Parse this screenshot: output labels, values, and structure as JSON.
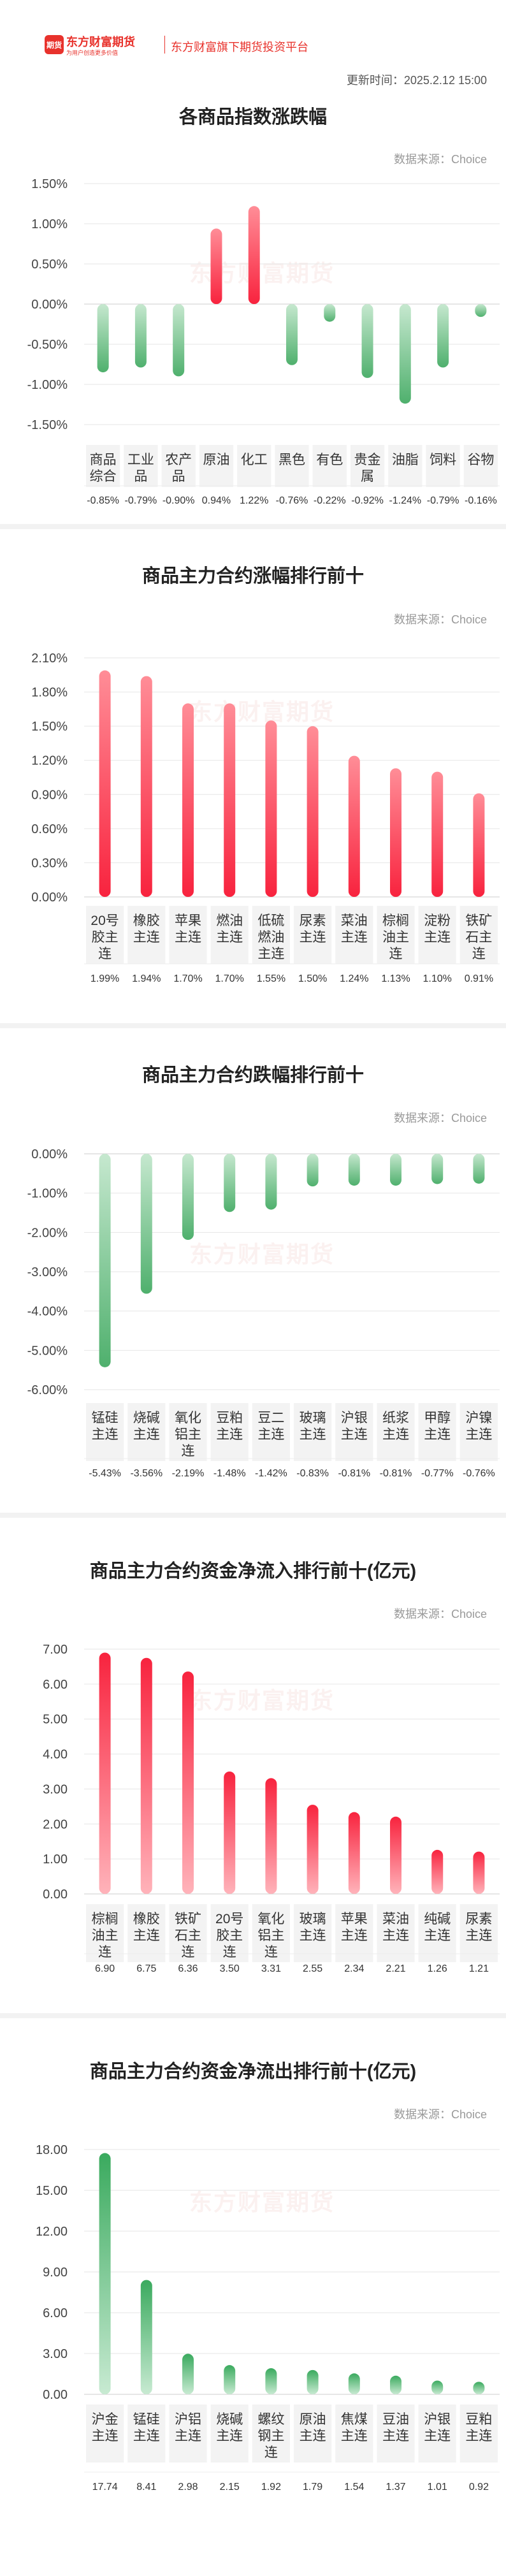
{
  "header": {
    "logo_badge": "期货",
    "logo_name": "东方财富期货",
    "logo_slogan": "为用户创造更多价值",
    "platform": "东方财富旗下期货投资平台",
    "update_time": "更新时间：2025.2.12 15:00"
  },
  "source_label": "数据来源：Choice",
  "watermark": "东方财富期货",
  "chart_data": [
    {
      "type": "bar",
      "title": "各商品指数涨跌幅",
      "categories": [
        "商品综合",
        "工业品",
        "农产品",
        "原油",
        "化工",
        "黑色",
        "有色",
        "贵金属",
        "油脂",
        "饲料",
        "谷物"
      ],
      "category_lines": [
        [
          "商品",
          "综合"
        ],
        [
          "工业",
          "品"
        ],
        [
          "农产",
          "品"
        ],
        [
          "原油"
        ],
        [
          "化工"
        ],
        [
          "黑色"
        ],
        [
          "有色"
        ],
        [
          "贵金",
          "属"
        ],
        [
          "油脂"
        ],
        [
          "饲料"
        ],
        [
          "谷物"
        ]
      ],
      "values": [
        -0.85,
        -0.79,
        -0.9,
        0.94,
        1.22,
        -0.76,
        -0.22,
        -0.92,
        -1.24,
        -0.79,
        -0.16
      ],
      "value_labels": [
        "-0.85%",
        "-0.79%",
        "-0.90%",
        "0.94%",
        "1.22%",
        "-0.76%",
        "-0.22%",
        "-0.92%",
        "-1.24%",
        "-0.79%",
        "-0.16%"
      ],
      "ylim": [
        -1.5,
        1.5
      ],
      "yticks": [
        1.5,
        1.0,
        0.5,
        0.0,
        -0.5,
        -1.0,
        -1.5
      ],
      "ytick_labels": [
        "1.50%",
        "1.00%",
        "0.50%",
        "0.00%",
        "-0.50%",
        "-1.00%",
        "-1.50%"
      ]
    },
    {
      "type": "bar",
      "title": "商品主力合约涨幅排行前十",
      "categories": [
        "20号胶主连",
        "橡胶主连",
        "苹果主连",
        "燃油主连",
        "低硫燃油主连",
        "尿素主连",
        "菜油主连",
        "棕榈油主连",
        "淀粉主连",
        "铁矿石主连"
      ],
      "category_lines": [
        [
          "20号",
          "胶主",
          "连"
        ],
        [
          "橡胶",
          "主连"
        ],
        [
          "苹果",
          "主连"
        ],
        [
          "燃油",
          "主连"
        ],
        [
          "低硫",
          "燃油",
          "主连"
        ],
        [
          "尿素",
          "主连"
        ],
        [
          "菜油",
          "主连"
        ],
        [
          "棕榈",
          "油主",
          "连"
        ],
        [
          "淀粉",
          "主连"
        ],
        [
          "铁矿",
          "石主",
          "连"
        ]
      ],
      "values": [
        1.99,
        1.94,
        1.7,
        1.7,
        1.55,
        1.5,
        1.24,
        1.13,
        1.1,
        0.91
      ],
      "value_labels": [
        "1.99%",
        "1.94%",
        "1.70%",
        "1.70%",
        "1.55%",
        "1.50%",
        "1.24%",
        "1.13%",
        "1.10%",
        "0.91%"
      ],
      "ylim": [
        0,
        2.1
      ],
      "yticks": [
        2.1,
        1.8,
        1.5,
        1.2,
        0.9,
        0.6,
        0.3,
        0.0
      ],
      "ytick_labels": [
        "2.10%",
        "1.80%",
        "1.50%",
        "1.20%",
        "0.90%",
        "0.60%",
        "0.30%",
        "0.00%"
      ]
    },
    {
      "type": "bar",
      "title": "商品主力合约跌幅排行前十",
      "categories": [
        "锰硅主连",
        "烧碱主连",
        "氧化铝主连",
        "豆粕主连",
        "豆二主连",
        "玻璃主连",
        "沪银主连",
        "纸浆主连",
        "甲醇主连",
        "沪镍主连"
      ],
      "category_lines": [
        [
          "锰硅",
          "主连"
        ],
        [
          "烧碱",
          "主连"
        ],
        [
          "氧化",
          "铝主",
          "连"
        ],
        [
          "豆粕",
          "主连"
        ],
        [
          "豆二",
          "主连"
        ],
        [
          "玻璃",
          "主连"
        ],
        [
          "沪银",
          "主连"
        ],
        [
          "纸浆",
          "主连"
        ],
        [
          "甲醇",
          "主连"
        ],
        [
          "沪镍",
          "主连"
        ]
      ],
      "values": [
        -5.43,
        -3.56,
        -2.19,
        -1.48,
        -1.42,
        -0.83,
        -0.81,
        -0.81,
        -0.77,
        -0.76
      ],
      "value_labels": [
        "-5.43%",
        "-3.56%",
        "-2.19%",
        "-1.48%",
        "-1.42%",
        "-0.83%",
        "-0.81%",
        "-0.81%",
        "-0.77%",
        "-0.76%"
      ],
      "ylim": [
        -6.0,
        0.0
      ],
      "yticks": [
        0.0,
        -1.0,
        -2.0,
        -3.0,
        -4.0,
        -5.0,
        -6.0
      ],
      "ytick_labels": [
        "0.00%",
        "-1.00%",
        "-2.00%",
        "-3.00%",
        "-4.00%",
        "-5.00%",
        "-6.00%"
      ]
    },
    {
      "type": "bar",
      "title": "商品主力合约资金净流入排行前十(亿元)",
      "categories": [
        "棕榈油主连",
        "橡胶主连",
        "铁矿石主连",
        "20号胶主连",
        "氧化铝主连",
        "玻璃主连",
        "苹果主连",
        "菜油主连",
        "纯碱主连",
        "尿素主连"
      ],
      "category_lines": [
        [
          "棕榈",
          "油主",
          "连"
        ],
        [
          "橡胶",
          "主连"
        ],
        [
          "铁矿",
          "石主",
          "连"
        ],
        [
          "20号",
          "胶主",
          "连"
        ],
        [
          "氧化",
          "铝主",
          "连"
        ],
        [
          "玻璃",
          "主连"
        ],
        [
          "苹果",
          "主连"
        ],
        [
          "菜油",
          "主连"
        ],
        [
          "纯碱",
          "主连"
        ],
        [
          "尿素",
          "主连"
        ]
      ],
      "values": [
        6.9,
        6.75,
        6.36,
        3.5,
        3.31,
        2.55,
        2.34,
        2.21,
        1.26,
        1.21
      ],
      "value_labels": [
        "6.90",
        "6.75",
        "6.36",
        "3.50",
        "3.31",
        "2.55",
        "2.34",
        "2.21",
        "1.26",
        "1.21"
      ],
      "ylim": [
        0,
        7.0
      ],
      "yticks": [
        7.0,
        6.0,
        5.0,
        4.0,
        3.0,
        2.0,
        1.0,
        0.0
      ],
      "ytick_labels": [
        "7.00",
        "6.00",
        "5.00",
        "4.00",
        "3.00",
        "2.00",
        "1.00",
        "0.00"
      ]
    },
    {
      "type": "bar",
      "title": "商品主力合约资金净流出排行前十(亿元)",
      "categories": [
        "沪金主连",
        "锰硅主连",
        "沪铝主连",
        "烧碱主连",
        "螺纹钢主连",
        "原油主连",
        "焦煤主连",
        "豆油主连",
        "沪银主连",
        "豆粕主连"
      ],
      "category_lines": [
        [
          "沪金",
          "主连"
        ],
        [
          "锰硅",
          "主连"
        ],
        [
          "沪铝",
          "主连"
        ],
        [
          "烧碱",
          "主连"
        ],
        [
          "螺纹",
          "钢主",
          "连"
        ],
        [
          "原油",
          "主连"
        ],
        [
          "焦煤",
          "主连"
        ],
        [
          "豆油",
          "主连"
        ],
        [
          "沪银",
          "主连"
        ],
        [
          "豆粕",
          "主连"
        ]
      ],
      "values": [
        17.74,
        8.41,
        2.98,
        2.15,
        1.92,
        1.79,
        1.54,
        1.37,
        1.01,
        0.92
      ],
      "value_labels": [
        "17.74",
        "8.41",
        "2.98",
        "2.15",
        "1.92",
        "1.79",
        "1.54",
        "1.37",
        "1.01",
        "0.92"
      ],
      "ylim": [
        0,
        18.0
      ],
      "yticks": [
        18.0,
        15.0,
        12.0,
        9.0,
        6.0,
        3.0,
        0.0
      ],
      "ytick_labels": [
        "18.00",
        "15.00",
        "12.00",
        "9.00",
        "6.00",
        "3.00",
        "0.00"
      ]
    }
  ],
  "colors": {
    "up_top": "#ff8d97",
    "up_bottom": "#f8233e",
    "down_top": "#4fb06d",
    "down_bottom": "#c6e8cf",
    "in_top": "#f8233e",
    "in_bottom": "#ffb3ba",
    "out_top": "#3aaa5e",
    "out_bottom": "#c8ead2",
    "brand": "#e8322c"
  }
}
